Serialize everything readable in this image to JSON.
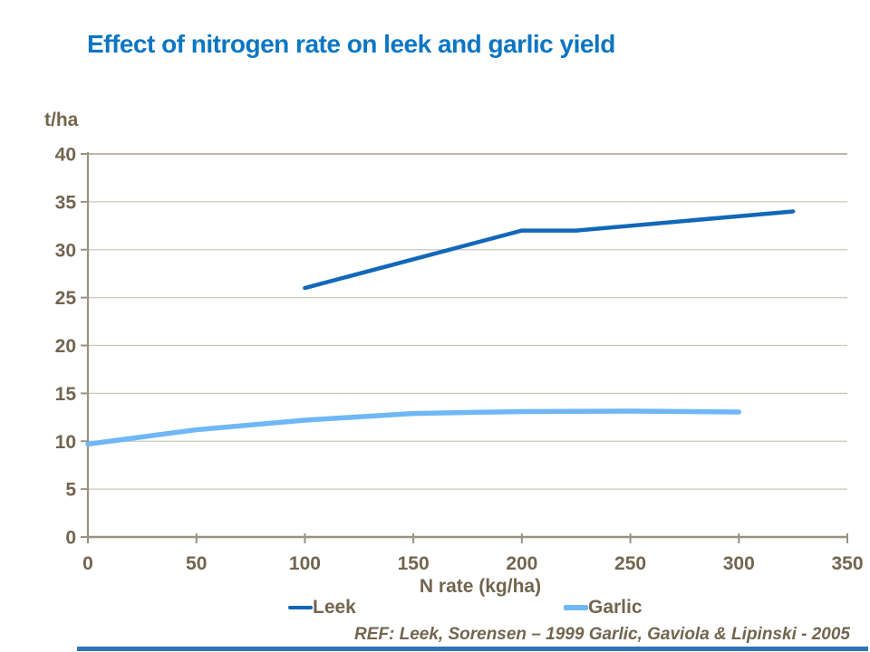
{
  "title": "Effect of nitrogen rate on leek and garlic yield",
  "colors": {
    "title": "#0b76c2",
    "text": "#72654f",
    "axis": "#9a9181",
    "gridline": "#ccc7bc",
    "top_gridline": "#a59d8d",
    "leek": "#1268b8",
    "garlic": "#6fb7f5",
    "bottom_bar": "#2e75b6"
  },
  "chart_data": {
    "type": "line",
    "title": "Effect of nitrogen rate on leek and garlic yield",
    "xlabel": "N rate (kg/ha)",
    "ylabel": "t/ha",
    "xlim": [
      0,
      350
    ],
    "ylim": [
      0,
      40
    ],
    "x_ticks": [
      0,
      50,
      100,
      150,
      200,
      250,
      300,
      350
    ],
    "y_ticks": [
      0,
      5,
      10,
      15,
      20,
      25,
      30,
      35,
      40
    ],
    "grid": "horizontal",
    "legend_position": "bottom",
    "series": [
      {
        "name": "Leek",
        "color": "#1268b8",
        "points": [
          [
            100,
            26
          ],
          [
            200,
            32
          ],
          [
            225,
            32
          ],
          [
            325,
            34
          ]
        ]
      },
      {
        "name": "Garlic",
        "color": "#6fb7f5",
        "points": [
          [
            0,
            9.7
          ],
          [
            50,
            11.2
          ],
          [
            100,
            12.2
          ],
          [
            150,
            12.9
          ],
          [
            200,
            13.1
          ],
          [
            250,
            13.15
          ],
          [
            300,
            13.05
          ]
        ]
      }
    ]
  },
  "footer": {
    "ref": "REF: Leek, Sorensen – 1999 Garlic, Gaviola & Lipinski - 2005"
  }
}
